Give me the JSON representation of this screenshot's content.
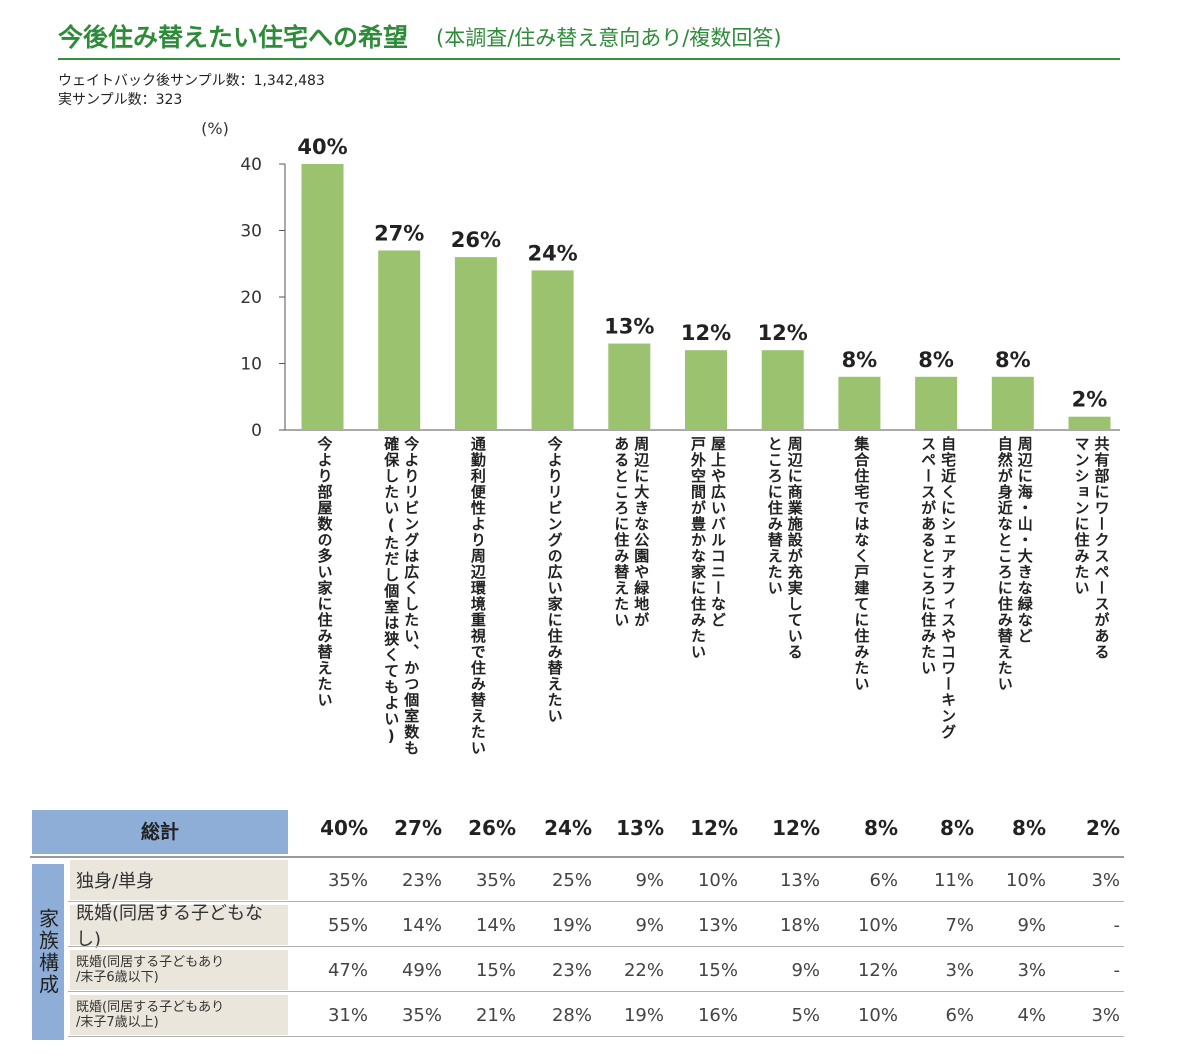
{
  "header": {
    "title": "今後住み替えたい住宅への希望",
    "subtitle": "(本調査/住み替え意向あり/複数回答)",
    "weighted_sample": "ウェイトバック後サンプル数：1,342,483",
    "actual_sample": "実サンプル数：323"
  },
  "colors": {
    "bar": "#9bc26f",
    "title": "#2e8b3a",
    "header_bg": "#8eaed8",
    "row_label_bg": "#eae6dc"
  },
  "chart_data": {
    "type": "bar",
    "title": "今後住み替えたい住宅への希望",
    "ylabel": "(%)",
    "ylim": [
      0,
      40
    ],
    "yticks": [
      0,
      10,
      20,
      30,
      40
    ],
    "grid": false,
    "categories": [
      "今より部屋数の多い家に住み替えたい",
      "今よりリビングは広くしたい、かつ個室数も確保したい(ただし個室は狭くてもよい)",
      "通勤利便性より周辺環境重視で住み替えたい",
      "今よりリビングの広い家に住み替えたい",
      "周辺に大きな公園や緑地があるところに住み替えたい",
      "屋上や広いバルコニーなど戸外空間が豊かな家に住みたい",
      "周辺に商業施設が充実しているところに住み替えたい",
      "集合住宅ではなく戸建てに住みたい",
      "自宅近くにシェアオフィスやコワーキングスペースがあるところに住みたい",
      "周辺に海・山・大きな緑など自然が身近なところに住み替えたい",
      "共有部にワークスペースがあるマンションに住みたい"
    ],
    "category_lines": [
      [
        "今より部屋数の多い家に住み替えたい"
      ],
      [
        "今よりリビングは広くしたい、かつ個室数も",
        "確保したい(ただし個室は狭くてもよい)"
      ],
      [
        "通勤利便性より周辺環境重視で住み替えたい"
      ],
      [
        "今よりリビングの広い家に住み替えたい"
      ],
      [
        "周辺に大きな公園や緑地が",
        "あるところに住み替えたい"
      ],
      [
        "屋上や広いバルコニーなど",
        "戸外空間が豊かな家に住みたい"
      ],
      [
        "周辺に商業施設が充実している",
        "ところに住み替えたい"
      ],
      [
        "集合住宅ではなく戸建てに住みたい"
      ],
      [
        "自宅近くにシェアオフィスやコワーキング",
        "スペースがあるところに住みたい"
      ],
      [
        "周辺に海・山・大きな緑など",
        "自然が身近なところに住み替えたい"
      ],
      [
        "共有部にワークスペースがある",
        "マンションに住みたい"
      ]
    ],
    "values": [
      40,
      27,
      26,
      24,
      13,
      12,
      12,
      8,
      8,
      8,
      2
    ],
    "value_labels": [
      "40%",
      "27%",
      "26%",
      "24%",
      "13%",
      "12%",
      "12%",
      "8%",
      "8%",
      "8%",
      "2%"
    ]
  },
  "table": {
    "total_label": "総計",
    "total": [
      "40%",
      "27%",
      "26%",
      "24%",
      "13%",
      "12%",
      "12%",
      "8%",
      "8%",
      "8%",
      "2%"
    ],
    "group_label": "家族構成",
    "rows": [
      {
        "label": [
          "独身/単身"
        ],
        "values": [
          "35%",
          "23%",
          "35%",
          "25%",
          "9%",
          "10%",
          "13%",
          "6%",
          "11%",
          "10%",
          "3%"
        ]
      },
      {
        "label": [
          "既婚(同居する子どもなし)"
        ],
        "values": [
          "55%",
          "14%",
          "14%",
          "19%",
          "9%",
          "13%",
          "18%",
          "10%",
          "7%",
          "9%",
          "-"
        ]
      },
      {
        "label": [
          "既婚(同居する子どもあり",
          "/末子6歳以下)"
        ],
        "values": [
          "47%",
          "49%",
          "15%",
          "23%",
          "22%",
          "15%",
          "9%",
          "12%",
          "3%",
          "3%",
          "-"
        ]
      },
      {
        "label": [
          "既婚(同居する子どもあり",
          "/末子7歳以上)"
        ],
        "values": [
          "31%",
          "35%",
          "21%",
          "28%",
          "19%",
          "16%",
          "5%",
          "10%",
          "6%",
          "4%",
          "3%"
        ]
      }
    ]
  }
}
